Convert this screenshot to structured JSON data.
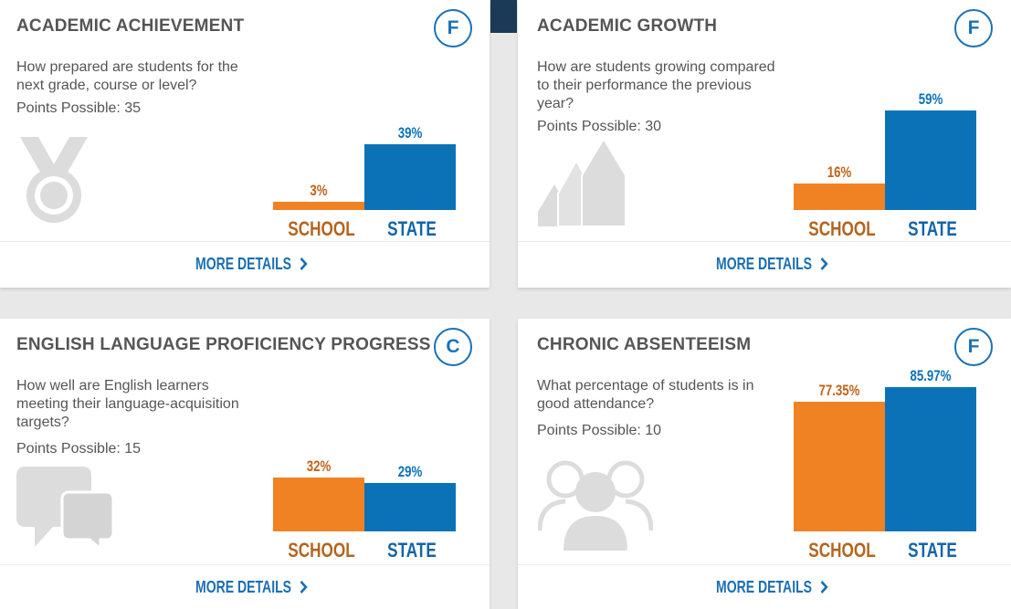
{
  "cards": [
    {
      "title": "ACADEMIC ACHIEVEMENT",
      "grade": "F",
      "question": "How prepared are students for the next grade, course or level?",
      "points": "Points Possible: 35",
      "icon": "medal-icon",
      "school_label": "SCHOOL",
      "state_label": "STATE",
      "school_value": "3%",
      "state_value": "39%",
      "details_label": "MORE DETAILS",
      "details_icon": "chevron-right-icon"
    },
    {
      "title": "ACADEMIC GROWTH",
      "grade": "F",
      "question": "How are students growing compared to their performance the previous year?",
      "points": "Points Possible: 30",
      "icon": "growth-arrows-icon",
      "school_label": "SCHOOL",
      "state_label": "STATE",
      "school_value": "16%",
      "state_value": "59%",
      "details_label": "MORE DETAILS",
      "details_icon": "chevron-right-icon"
    },
    {
      "title": "ENGLISH LANGUAGE PROFICIENCY PROGRESS",
      "grade": "C",
      "question": "How well are English learners meeting their language-acquisition targets?",
      "points": "Points Possible: 15",
      "icon": "speech-bubbles-icon",
      "school_label": "SCHOOL",
      "state_label": "STATE",
      "school_value": "32%",
      "state_value": "29%",
      "details_label": "MORE DETAILS",
      "details_icon": "chevron-right-icon"
    },
    {
      "title": "CHRONIC ABSENTEEISM",
      "grade": "F",
      "question": "What percentage of students is in good attendance?",
      "points": "Points Possible: 10",
      "icon": "people-group-icon",
      "school_label": "SCHOOL",
      "state_label": "STATE",
      "school_value": "77.35%",
      "state_value": "85.97%",
      "details_label": "MORE DETAILS",
      "details_icon": "chevron-right-icon"
    }
  ],
  "colors": {
    "school": "#f08223",
    "state": "#0b72b8",
    "grade": "#1a73b5",
    "title": "#555555"
  }
}
